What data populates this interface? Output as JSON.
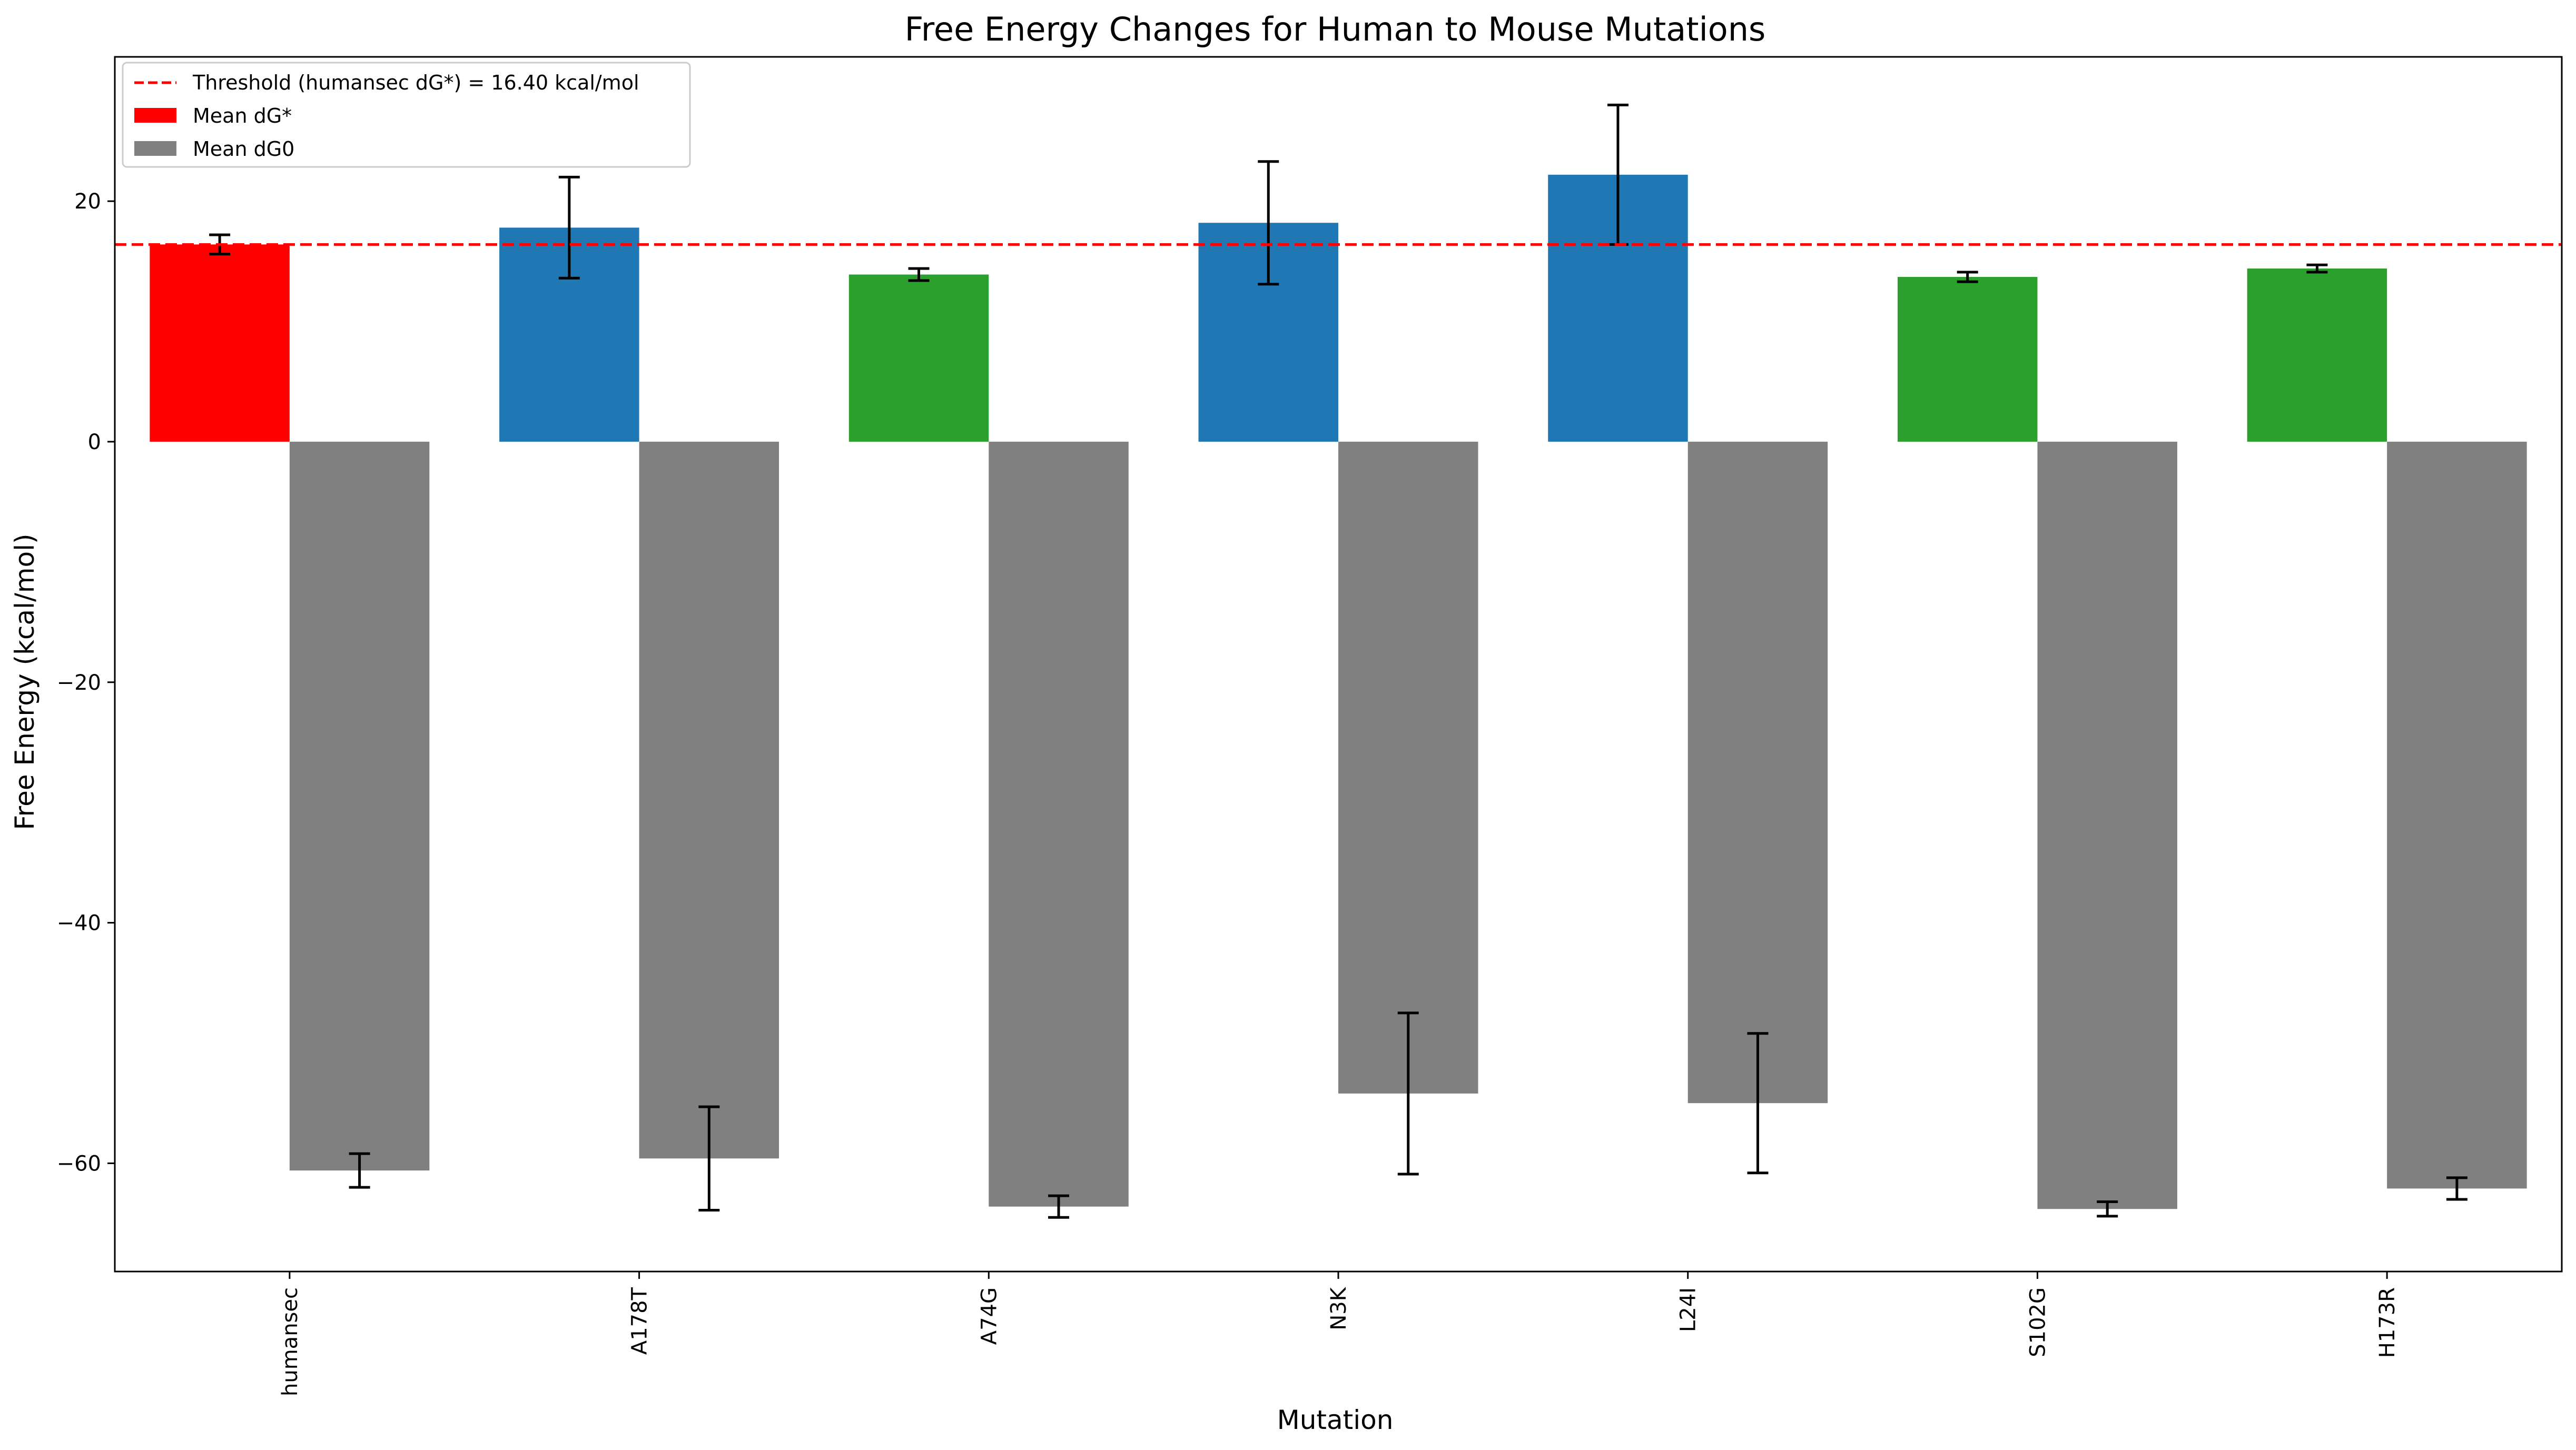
{
  "chart_data": {
    "type": "bar",
    "title": "Free Energy Changes for Human to Mouse Mutations",
    "xlabel": "Mutation",
    "ylabel": "Free Energy (kcal/mol)",
    "ylim": [
      -69,
      32
    ],
    "yticks": [
      20,
      0,
      -20,
      -40,
      -60
    ],
    "ytick_labels": [
      "20",
      "0",
      "−20",
      "−40",
      "−60"
    ],
    "categories": [
      "humansec",
      "A178T",
      "A74G",
      "N3K",
      "L24I",
      "S102G",
      "H173R"
    ],
    "threshold": {
      "value": 16.4,
      "label": "Threshold (humansec dG*) = 16.40 kcal/mol",
      "color": "#ff0000"
    },
    "series": [
      {
        "name": "Mean dG*",
        "legend_color": "#ff0000",
        "values": [
          16.4,
          17.8,
          13.9,
          18.2,
          22.2,
          13.7,
          14.4
        ],
        "errors": [
          0.8,
          4.2,
          0.5,
          5.1,
          5.8,
          0.4,
          0.3
        ],
        "colors": [
          "#ff0000",
          "#1f77b4",
          "#2ca02c",
          "#1f77b4",
          "#1f77b4",
          "#2ca02c",
          "#2ca02c"
        ]
      },
      {
        "name": "Mean dG0",
        "legend_color": "#808080",
        "values": [
          -60.6,
          -59.6,
          -63.6,
          -54.2,
          -55.0,
          -63.8,
          -62.1
        ],
        "errors": [
          1.4,
          4.3,
          0.9,
          6.7,
          5.8,
          0.6,
          0.9
        ],
        "colors": [
          "#808080",
          "#808080",
          "#808080",
          "#808080",
          "#808080",
          "#808080",
          "#808080"
        ]
      }
    ],
    "legend_position": "top-left",
    "grid": false
  }
}
